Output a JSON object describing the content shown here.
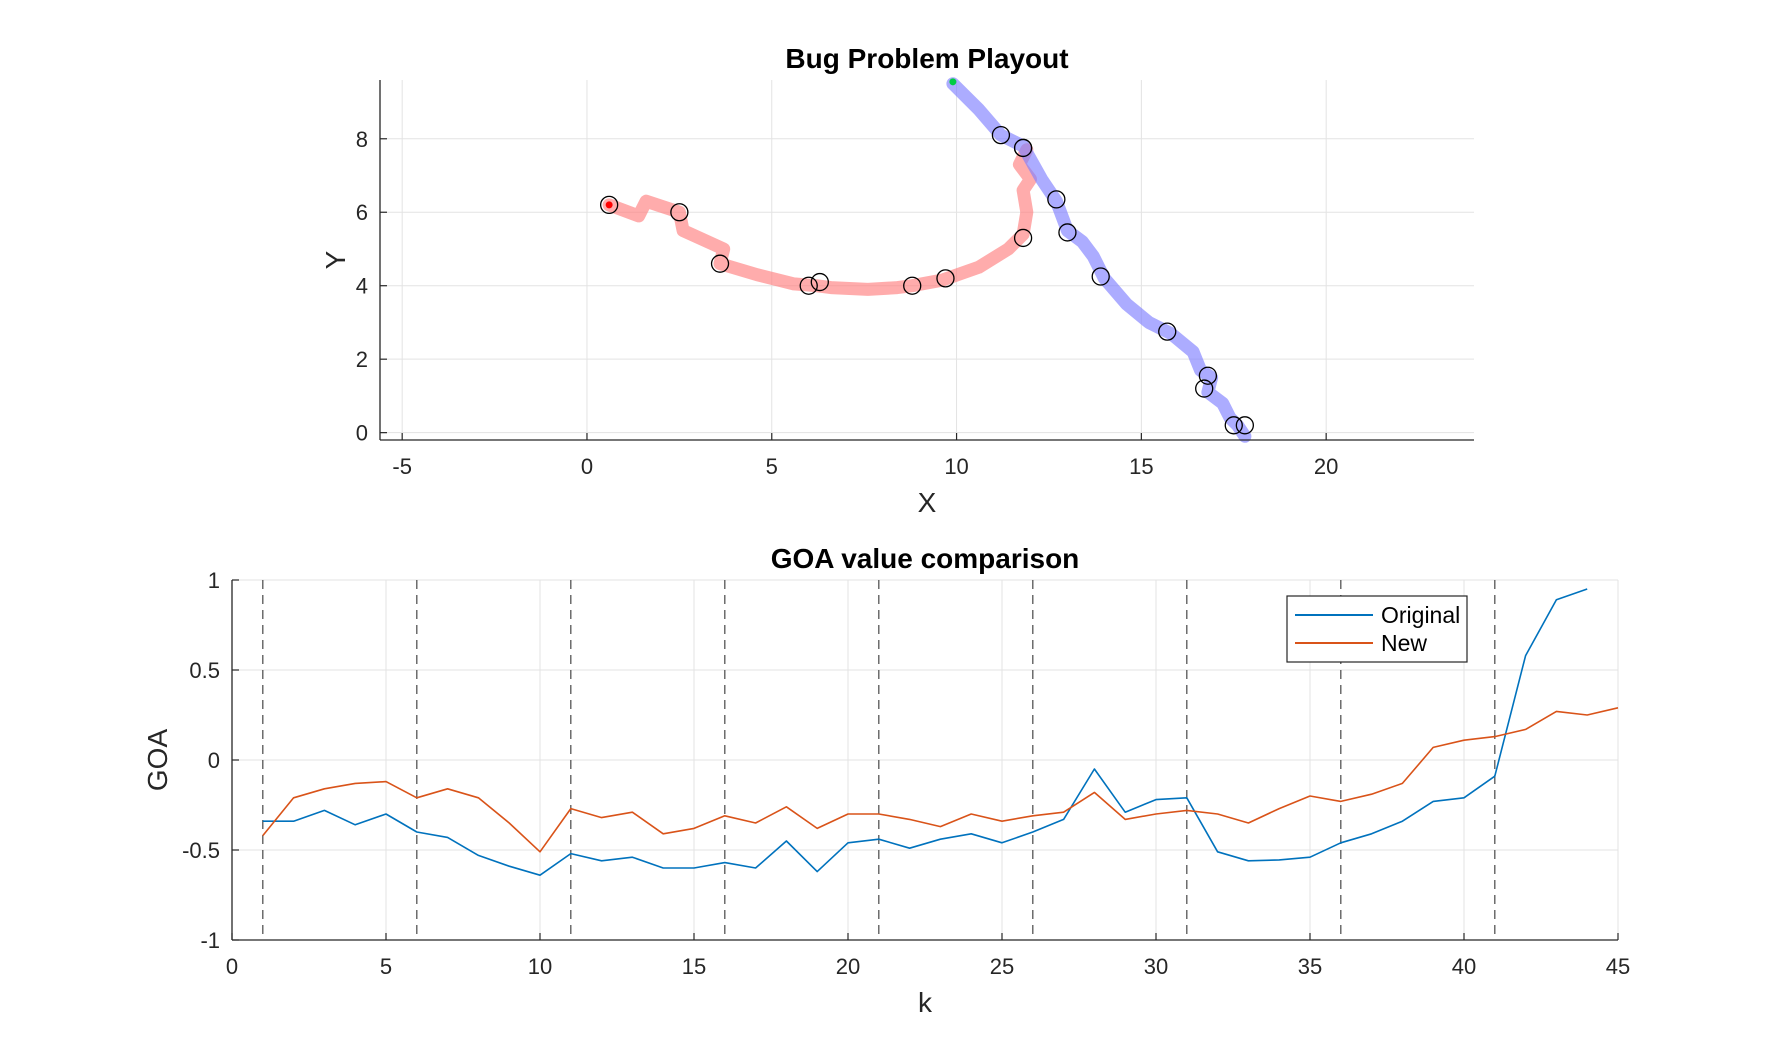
{
  "chart_data": [
    {
      "type": "scatter",
      "title": "Bug Problem Playout",
      "xlabel": "X",
      "ylabel": "Y",
      "xlim": [
        -5.6,
        24
      ],
      "ylim": [
        -0.2,
        9.6
      ],
      "xticks": [
        -5,
        0,
        5,
        10,
        15,
        20
      ],
      "yticks": [
        0,
        2,
        4,
        6,
        8
      ],
      "tick_labels_x": [
        "-5",
        "0",
        "5",
        "10",
        "15",
        "20"
      ],
      "tick_labels_y": [
        "0",
        "2",
        "4",
        "6",
        "8"
      ],
      "grid": true,
      "series": [
        {
          "color": "#ff8080",
          "marker_color": "#ff0000",
          "path": [
            [
              0.6,
              6.2
            ],
            [
              1.4,
              5.9
            ],
            [
              1.6,
              6.3
            ],
            [
              2.5,
              6.0
            ],
            [
              2.6,
              5.5
            ],
            [
              3.7,
              5.0
            ],
            [
              3.6,
              4.6
            ],
            [
              4.6,
              4.3
            ],
            [
              5.6,
              4.05
            ],
            [
              6.2,
              4.0
            ],
            [
              6.6,
              3.95
            ],
            [
              7.6,
              3.9
            ],
            [
              8.4,
              3.95
            ],
            [
              8.8,
              4.0
            ],
            [
              9.6,
              4.15
            ],
            [
              10.6,
              4.5
            ],
            [
              11.4,
              5.0
            ],
            [
              11.8,
              5.4
            ],
            [
              11.9,
              6.0
            ],
            [
              11.8,
              6.6
            ],
            [
              12.0,
              6.9
            ],
            [
              11.7,
              7.3
            ],
            [
              11.9,
              7.7
            ]
          ],
          "waypoints": [
            [
              0.6,
              6.2
            ],
            [
              2.5,
              6.0
            ],
            [
              3.6,
              4.6
            ],
            [
              6.0,
              4.0
            ],
            [
              6.3,
              4.1
            ],
            [
              8.8,
              4.0
            ],
            [
              9.7,
              4.2
            ],
            [
              11.8,
              5.3
            ],
            [
              11.8,
              7.75
            ]
          ],
          "start": [
            0.6,
            6.2
          ]
        },
        {
          "color": "#8080ff",
          "marker_color": "#0000ff",
          "path": [
            [
              9.9,
              9.5
            ],
            [
              10.6,
              8.8
            ],
            [
              11.2,
              8.1
            ],
            [
              11.8,
              7.8
            ],
            [
              12.3,
              6.9
            ],
            [
              12.7,
              6.3
            ],
            [
              13.0,
              5.5
            ],
            [
              13.4,
              5.2
            ],
            [
              13.7,
              4.8
            ],
            [
              14.0,
              4.2
            ],
            [
              14.6,
              3.5
            ],
            [
              15.2,
              3.0
            ],
            [
              15.8,
              2.7
            ],
            [
              16.4,
              2.2
            ],
            [
              16.6,
              1.7
            ],
            [
              16.9,
              1.5
            ],
            [
              16.8,
              1.1
            ],
            [
              17.2,
              0.8
            ],
            [
              17.4,
              0.4
            ],
            [
              17.6,
              0.2
            ],
            [
              17.8,
              -0.1
            ]
          ],
          "waypoints": [
            [
              11.2,
              8.1
            ],
            [
              11.8,
              7.75
            ],
            [
              12.7,
              6.35
            ],
            [
              13.0,
              5.45
            ],
            [
              13.9,
              4.25
            ],
            [
              15.7,
              2.75
            ],
            [
              16.8,
              1.55
            ],
            [
              16.7,
              1.2
            ],
            [
              17.5,
              0.2
            ],
            [
              17.8,
              0.2
            ]
          ],
          "start": [
            9.9,
            9.55
          ],
          "start_color": "#00cc44"
        }
      ]
    },
    {
      "type": "line",
      "title": "GOA value comparison",
      "xlabel": "k",
      "ylabel": "GOA",
      "xlim": [
        0,
        45
      ],
      "ylim": [
        -1,
        1
      ],
      "xticks": [
        0,
        5,
        10,
        15,
        20,
        25,
        30,
        35,
        40,
        45
      ],
      "yticks": [
        -1,
        -0.5,
        0,
        0.5,
        1
      ],
      "tick_labels_x": [
        "0",
        "5",
        "10",
        "15",
        "20",
        "25",
        "30",
        "35",
        "40",
        "45"
      ],
      "tick_labels_y": [
        "-1",
        "-0.5",
        "0",
        "0.5",
        "1"
      ],
      "grid": true,
      "legend_position": "top-right",
      "vlines": [
        1,
        6,
        11,
        16,
        21,
        26,
        31,
        36,
        41
      ],
      "x": [
        1,
        2,
        3,
        4,
        5,
        6,
        7,
        8,
        9,
        10,
        11,
        12,
        13,
        14,
        15,
        16,
        17,
        18,
        19,
        20,
        21,
        22,
        23,
        24,
        25,
        26,
        27,
        28,
        29,
        30,
        31,
        32,
        33,
        34,
        35,
        36,
        37,
        38,
        39,
        40,
        41,
        42,
        43,
        44,
        45
      ],
      "series": [
        {
          "name": "Original",
          "color": "#0072bd",
          "values": [
            -0.34,
            -0.34,
            -0.28,
            -0.36,
            -0.3,
            -0.4,
            -0.43,
            -0.53,
            -0.59,
            -0.64,
            -0.52,
            -0.56,
            -0.54,
            -0.6,
            -0.6,
            -0.57,
            -0.6,
            -0.45,
            -0.62,
            -0.46,
            -0.44,
            -0.49,
            -0.44,
            -0.41,
            -0.46,
            -0.4,
            -0.33,
            -0.05,
            -0.29,
            -0.22,
            -0.21,
            -0.51,
            -0.56,
            -0.555,
            -0.54,
            -0.46,
            -0.41,
            -0.34,
            -0.23,
            -0.21,
            -0.09,
            0.58,
            0.89,
            0.95,
            null
          ]
        },
        {
          "name": "New",
          "color": "#d95319",
          "values": [
            -0.42,
            -0.21,
            -0.16,
            -0.13,
            -0.12,
            -0.21,
            -0.16,
            -0.21,
            -0.35,
            -0.51,
            -0.27,
            -0.32,
            -0.29,
            -0.41,
            -0.38,
            -0.31,
            -0.35,
            -0.26,
            -0.38,
            -0.3,
            -0.3,
            -0.33,
            -0.37,
            -0.3,
            -0.34,
            -0.31,
            -0.29,
            -0.18,
            -0.33,
            -0.3,
            -0.28,
            -0.3,
            -0.35,
            -0.27,
            -0.2,
            -0.23,
            -0.19,
            -0.13,
            0.07,
            0.11,
            0.13,
            0.17,
            0.27,
            0.25,
            0.29
          ]
        }
      ]
    }
  ]
}
